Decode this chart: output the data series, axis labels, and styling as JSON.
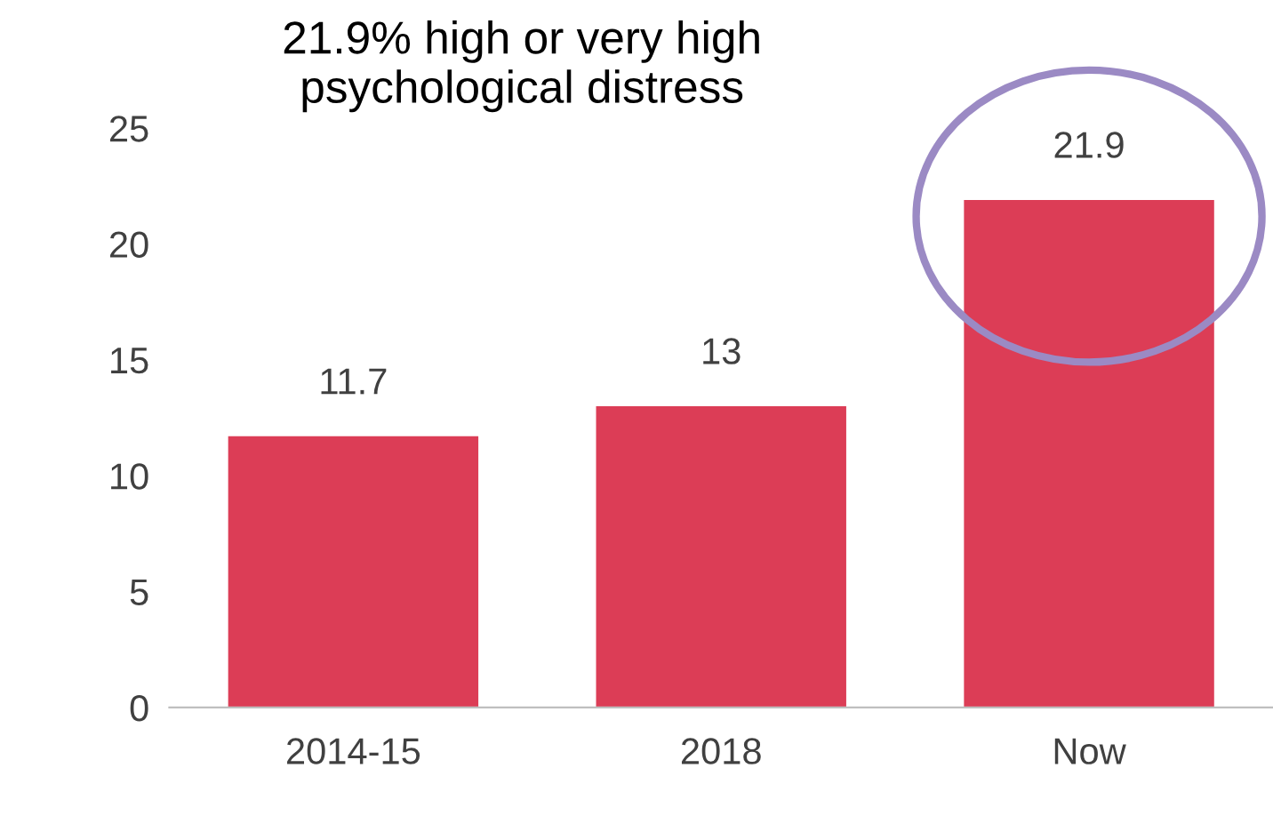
{
  "chart_data": {
    "type": "bar",
    "title": "21.9% high or very high\npsychological distress",
    "categories": [
      "2014-15",
      "2018",
      "Now"
    ],
    "values": [
      11.7,
      13,
      21.9
    ],
    "color": "#dc3d56",
    "ylim": [
      0,
      25
    ],
    "yticks": [
      0,
      5,
      10,
      15,
      20,
      25
    ],
    "data_labels": true,
    "grid": false,
    "legend": false
  }
}
